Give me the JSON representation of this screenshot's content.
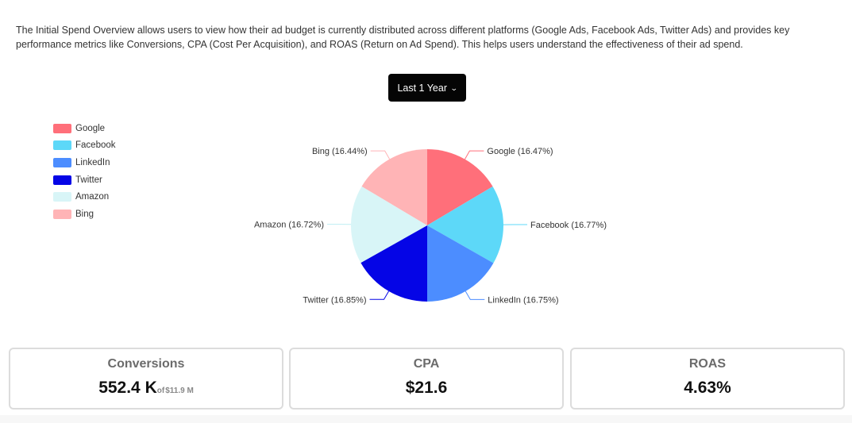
{
  "description": "The Initial Spend Overview allows users to view how their ad budget is currently distributed across different platforms (Google Ads, Facebook Ads, Twitter Ads) and provides key performance metrics like Conversions, CPA (Cost Per Acquisition), and ROAS (Return on Ad Spend). This helps users understand the effectiveness of their ad spend.",
  "range_selector": {
    "label": "Last 1 Year",
    "icon": "chevron-down-icon"
  },
  "legend": [
    {
      "label": "Google",
      "color": "#ff6f7a"
    },
    {
      "label": "Facebook",
      "color": "#5dd8f8"
    },
    {
      "label": "LinkedIn",
      "color": "#4c8dff"
    },
    {
      "label": "Twitter",
      "color": "#0505e6"
    },
    {
      "label": "Amazon",
      "color": "#d8f5f7"
    },
    {
      "label": "Bing",
      "color": "#ffb4b6"
    }
  ],
  "chart_data": {
    "type": "pie",
    "categories": [
      "Google",
      "Facebook",
      "LinkedIn",
      "Twitter",
      "Amazon",
      "Bing"
    ],
    "values": [
      16.47,
      16.77,
      16.75,
      16.85,
      16.72,
      16.44
    ],
    "labels": [
      "Google (16.47%)",
      "Facebook (16.77%)",
      "LinkedIn (16.75%)",
      "Twitter (16.85%)",
      "Amazon (16.72%)",
      "Bing (16.44%)"
    ],
    "colors": [
      "#ff6f7a",
      "#5dd8f8",
      "#4c8dff",
      "#0505e6",
      "#d8f5f7",
      "#ffb4b6"
    ],
    "legend_position": "top-left"
  },
  "metrics": {
    "conversions": {
      "title": "Conversions",
      "value": "552.4 K",
      "sub_prefix": "of",
      "sub_value": "$11.9 M"
    },
    "cpa": {
      "title": "CPA",
      "value": "$21.6"
    },
    "roas": {
      "title": "ROAS",
      "value": "4.63%"
    }
  }
}
